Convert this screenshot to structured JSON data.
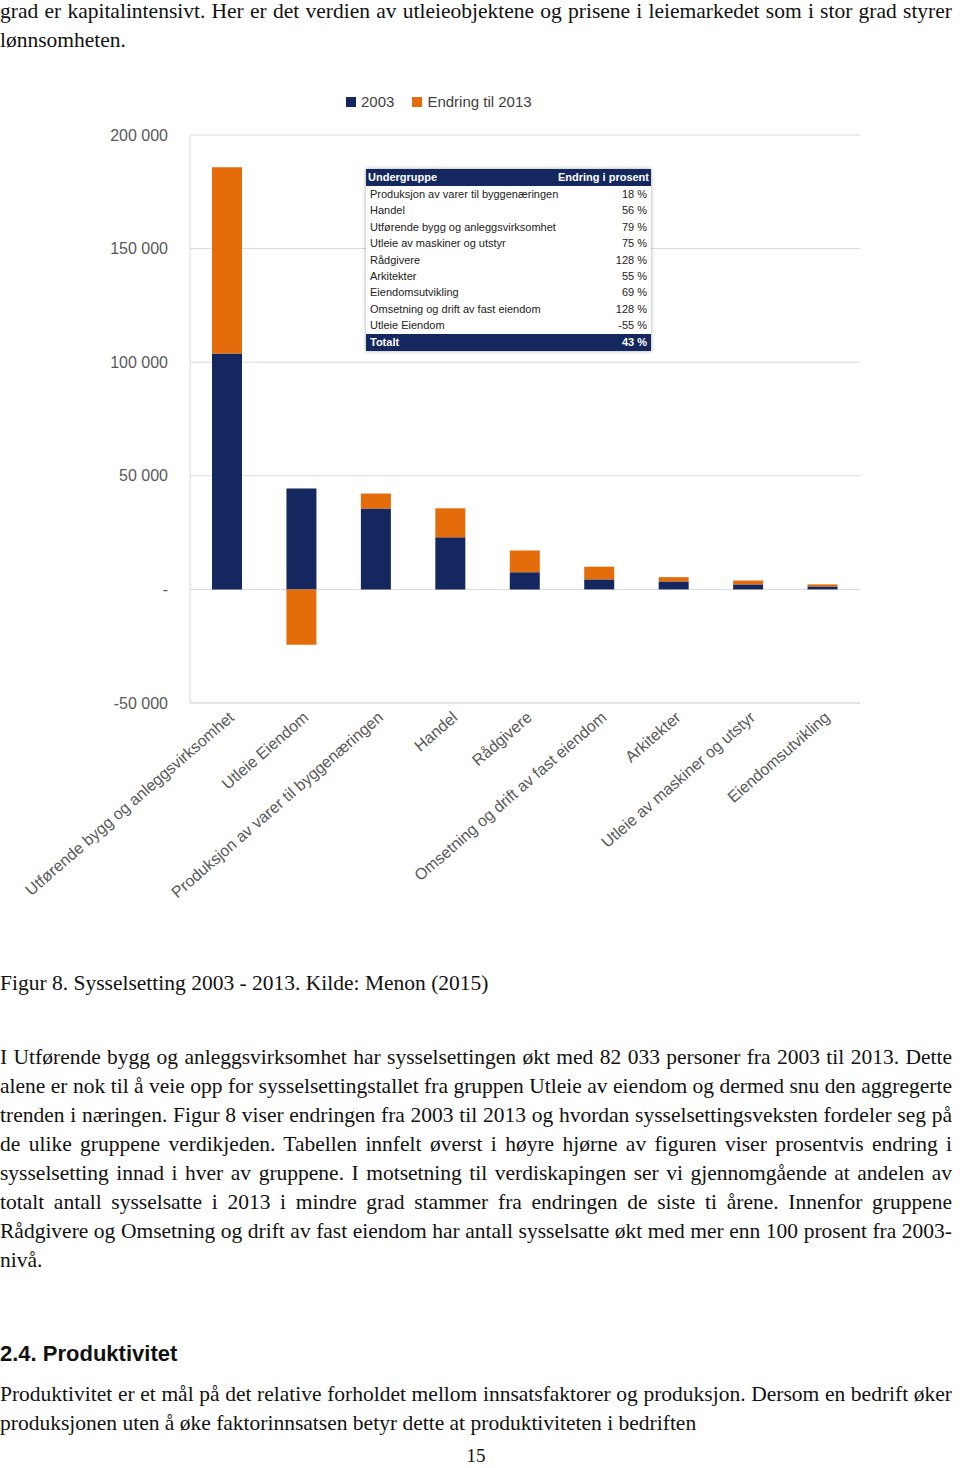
{
  "top_text": "grad er kapitalintensivt. Her er det verdien av utleieobjektene og prisene i leiemarkedet som i stor grad styrer lønnsomheten.",
  "chart_data": {
    "type": "bar",
    "stacked": true,
    "categories": [
      "Utførende bygg og anleggsvirksomhet",
      "Utleie Eiendom",
      "Produksjon av varer til byggenæringen",
      "Handel",
      "Rådgivere",
      "Omsetning og drift av fast eiendom",
      "Arkitekter",
      "Utleie av maskiner og utstyr",
      "Eiendomsutvikling"
    ],
    "series": [
      {
        "name": "2003",
        "color": "#14285f",
        "values": [
          103800,
          44400,
          35600,
          22900,
          7500,
          4400,
          3500,
          2200,
          1300
        ]
      },
      {
        "name": "Endring til 2013",
        "color": "#e46c0a",
        "values": [
          82000,
          -24400,
          6600,
          12800,
          9600,
          5600,
          1900,
          1700,
          900
        ]
      }
    ],
    "ylim": [
      -50000,
      200000
    ],
    "yticks": [
      {
        "value": -50000,
        "label": "-50 000"
      },
      {
        "value": 0,
        "label": "-"
      },
      {
        "value": 50000,
        "label": "50 000"
      },
      {
        "value": 100000,
        "label": "100 000"
      },
      {
        "value": 150000,
        "label": "150 000"
      },
      {
        "value": 200000,
        "label": "200 000"
      }
    ],
    "grid": true,
    "legend": "top"
  },
  "inset_table": {
    "header": [
      "Undergruppe",
      "Endring i prosent"
    ],
    "rows": [
      [
        "Produksjon av varer til byggenæringen",
        "18 %"
      ],
      [
        "Handel",
        "56 %"
      ],
      [
        "Utførende bygg og anleggsvirksomhet",
        "79 %"
      ],
      [
        "Utleie av maskiner og utstyr",
        "75 %"
      ],
      [
        "Rådgivere",
        "128 %"
      ],
      [
        "Arkitekter",
        "55 %"
      ],
      [
        "Eiendomsutvikling",
        "69 %"
      ],
      [
        "Omsetning og drift av fast eiendom",
        "128 %"
      ],
      [
        "Utleie Eiendom",
        "-55 %"
      ]
    ],
    "total": [
      "Totalt",
      "43 %"
    ]
  },
  "caption": "Figur 8. Sysselsetting 2003 - 2013. Kilde: Menon (2015)",
  "paragraph": "I Utførende bygg og anleggsvirksomhet har sysselsettingen økt med 82 033 personer fra 2003 til 2013. Dette alene er nok til å veie opp for sysselsettingstallet fra gruppen Utleie av eiendom og dermed snu den aggregerte trenden i næringen. Figur 8 viser endringen fra 2003 til 2013 og hvordan sysselsettingsveksten fordeler seg på de ulike gruppene verdikjeden. Tabellen innfelt øverst i høyre hjørne av figuren viser prosentvis endring i sysselsetting innad i hver av gruppene. I motsetning til verdiskapingen ser vi gjennomgående at andelen av totalt antall sysselsatte i 2013 i mindre grad stammer fra endringen de siste ti årene. Innenfor gruppene Rådgivere og Omsetning og drift av fast eiendom har antall sysselsatte økt med mer enn 100 prosent fra 2003-nivå.",
  "heading": "2.4. Produktivitet",
  "paragraph_2": "Produktivitet er et mål på det relative forholdet mellom innsatsfaktorer og produksjon. Dersom en bedrift øker produksjonen uten å øke faktorinnsatsen betyr dette at produktiviteten i bedriften",
  "page_number": "15"
}
